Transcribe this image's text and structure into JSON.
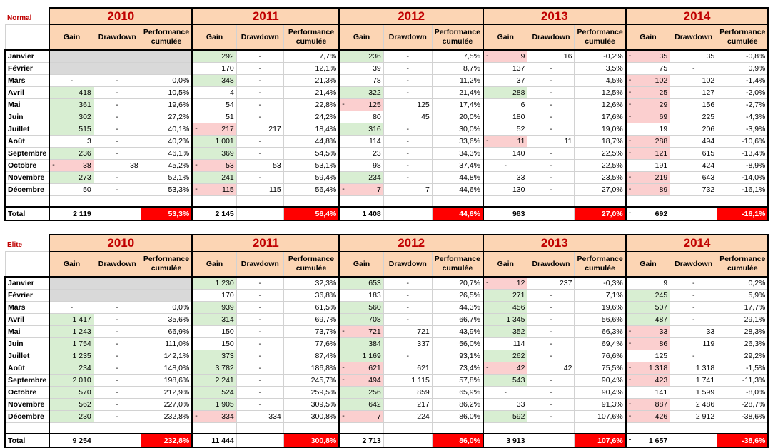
{
  "columns": {
    "gain": "Gain",
    "drawdown": "Drawdown",
    "perf": "Performance cumulée",
    "perf_wrapped": "Performance cumulée"
  },
  "total_label": "Total",
  "months": [
    "Janvier",
    "Février",
    "Mars",
    "Avril",
    "Mai",
    "Juin",
    "Juillet",
    "Août",
    "Septembre",
    "Octobre",
    "Novembre",
    "Décembre"
  ],
  "colors": {
    "header_bg": "#fcd5b4",
    "year_text": "#c00000",
    "gain_bg": "#d8eed2",
    "loss_bg": "#fbcfcf",
    "empty_bg": "#d9d9d9",
    "total_perf_bg": "#ff0000"
  },
  "sections": [
    {
      "label": "Normal",
      "years": [
        {
          "year": "2010",
          "cells": [
            [
              "",
              "",
              "",
              ""
            ],
            [
              "",
              "",
              "",
              ""
            ],
            [
              "-",
              "-",
              "0,0%",
              ""
            ],
            [
              "418",
              "-",
              "10,5%",
              "g"
            ],
            [
              "361",
              "-",
              "19,6%",
              "g"
            ],
            [
              "302",
              "-",
              "27,2%",
              "g"
            ],
            [
              "515",
              "-",
              "40,1%",
              "g"
            ],
            [
              "3",
              "-",
              "40,2%",
              ""
            ],
            [
              "236",
              "-",
              "46,1%",
              "g"
            ],
            [
              "38",
              "38",
              "45,2%",
              "n"
            ],
            [
              "273",
              "-",
              "52,1%",
              "g"
            ],
            [
              "50",
              "-",
              "53,3%",
              ""
            ]
          ],
          "total": {
            "gain": "2 119",
            "perf": "53,3%"
          }
        },
        {
          "year": "2011",
          "cells": [
            [
              "292",
              "-",
              "7,7%",
              "g"
            ],
            [
              "170",
              "-",
              "12,1%",
              ""
            ],
            [
              "348",
              "-",
              "21,3%",
              "g"
            ],
            [
              "4",
              "-",
              "21,4%",
              ""
            ],
            [
              "54",
              "-",
              "22,8%",
              ""
            ],
            [
              "51",
              "-",
              "24,2%",
              ""
            ],
            [
              "217",
              "217",
              "18,4%",
              "n"
            ],
            [
              "1 001",
              "-",
              "44,8%",
              "g"
            ],
            [
              "369",
              "-",
              "54,5%",
              "g"
            ],
            [
              "53",
              "53",
              "53,1%",
              "n"
            ],
            [
              "241",
              "-",
              "59,4%",
              "g"
            ],
            [
              "115",
              "115",
              "56,4%",
              "n"
            ]
          ],
          "total": {
            "gain": "2 145",
            "perf": "56,4%"
          }
        },
        {
          "year": "2012",
          "cells": [
            [
              "236",
              "-",
              "7,5%",
              "g"
            ],
            [
              "39",
              "-",
              "8,7%",
              ""
            ],
            [
              "78",
              "-",
              "11,2%",
              ""
            ],
            [
              "322",
              "-",
              "21,4%",
              "g"
            ],
            [
              "125",
              "125",
              "17,4%",
              "n"
            ],
            [
              "80",
              "45",
              "20,0%",
              ""
            ],
            [
              "316",
              "-",
              "30,0%",
              "g"
            ],
            [
              "114",
              "-",
              "33,6%",
              ""
            ],
            [
              "23",
              "-",
              "34,3%",
              ""
            ],
            [
              "98",
              "-",
              "37,4%",
              ""
            ],
            [
              "234",
              "-",
              "44,8%",
              "g"
            ],
            [
              "7",
              "7",
              "44,6%",
              "n"
            ]
          ],
          "total": {
            "gain": "1 408",
            "perf": "44,6%"
          }
        },
        {
          "year": "2013",
          "cells": [
            [
              "9",
              "16",
              "-0,2%",
              "n"
            ],
            [
              "137",
              "-",
              "3,5%",
              ""
            ],
            [
              "37",
              "-",
              "4,5%",
              ""
            ],
            [
              "288",
              "-",
              "12,5%",
              "g"
            ],
            [
              "6",
              "-",
              "12,6%",
              ""
            ],
            [
              "180",
              "-",
              "17,6%",
              ""
            ],
            [
              "52",
              "-",
              "19,0%",
              ""
            ],
            [
              "11",
              "11",
              "18,7%",
              "n"
            ],
            [
              "140",
              "-",
              "22,5%",
              ""
            ],
            [
              "-",
              "-",
              "22,5%",
              ""
            ],
            [
              "33",
              "-",
              "23,5%",
              ""
            ],
            [
              "130",
              "-",
              "27,0%",
              ""
            ]
          ],
          "total": {
            "gain": "983",
            "perf": "27,0%"
          }
        },
        {
          "year": "2014",
          "cells": [
            [
              "35",
              "35",
              "-0,8%",
              "n"
            ],
            [
              "75",
              "-",
              "0,9%",
              ""
            ],
            [
              "102",
              "102",
              "-1,4%",
              "n"
            ],
            [
              "25",
              "127",
              "-2,0%",
              "n"
            ],
            [
              "29",
              "156",
              "-2,7%",
              "n"
            ],
            [
              "69",
              "225",
              "-4,3%",
              "n"
            ],
            [
              "19",
              "206",
              "-3,9%",
              ""
            ],
            [
              "288",
              "494",
              "-10,6%",
              "n"
            ],
            [
              "121",
              "615",
              "-13,4%",
              "n"
            ],
            [
              "191",
              "424",
              "-8,9%",
              ""
            ],
            [
              "219",
              "643",
              "-14,0%",
              "n"
            ],
            [
              "89",
              "732",
              "-16,1%",
              "n"
            ]
          ],
          "total": {
            "gain": "692",
            "perf": "-16,1%",
            "neg": true
          }
        }
      ]
    },
    {
      "label": "Elite",
      "years": [
        {
          "year": "2010",
          "cells": [
            [
              "",
              "",
              "",
              ""
            ],
            [
              "",
              "",
              "",
              ""
            ],
            [
              "-",
              "-",
              "0,0%",
              ""
            ],
            [
              "1 417",
              "-",
              "35,6%",
              "g"
            ],
            [
              "1 243",
              "-",
              "66,9%",
              "g"
            ],
            [
              "1 754",
              "-",
              "111,0%",
              "g"
            ],
            [
              "1 235",
              "-",
              "142,1%",
              "g"
            ],
            [
              "234",
              "-",
              "148,0%",
              "g"
            ],
            [
              "2 010",
              "-",
              "198,6%",
              "g"
            ],
            [
              "570",
              "-",
              "212,9%",
              "g"
            ],
            [
              "562",
              "-",
              "227,0%",
              "g"
            ],
            [
              "230",
              "-",
              "232,8%",
              "g"
            ]
          ],
          "total": {
            "gain": "9 254",
            "perf": "232,8%"
          }
        },
        {
          "year": "2011",
          "cells": [
            [
              "1 230",
              "-",
              "32,3%",
              "g"
            ],
            [
              "170",
              "-",
              "36,8%",
              ""
            ],
            [
              "939",
              "-",
              "61,5%",
              "g"
            ],
            [
              "314",
              "-",
              "69,7%",
              "g"
            ],
            [
              "150",
              "-",
              "73,7%",
              ""
            ],
            [
              "150",
              "-",
              "77,6%",
              ""
            ],
            [
              "373",
              "-",
              "87,4%",
              "g"
            ],
            [
              "3 782",
              "-",
              "186,8%",
              "g"
            ],
            [
              "2 241",
              "-",
              "245,7%",
              "g"
            ],
            [
              "524",
              "-",
              "259,5%",
              "g"
            ],
            [
              "1 905",
              "-",
              "309,5%",
              "g"
            ],
            [
              "334",
              "334",
              "300,8%",
              "n"
            ]
          ],
          "total": {
            "gain": "11 444",
            "perf": "300,8%"
          }
        },
        {
          "year": "2012",
          "cells": [
            [
              "653",
              "-",
              "20,7%",
              "g"
            ],
            [
              "183",
              "-",
              "26,5%",
              ""
            ],
            [
              "560",
              "-",
              "44,3%",
              "g"
            ],
            [
              "708",
              "-",
              "66,7%",
              "g"
            ],
            [
              "721",
              "721",
              "43,9%",
              "n"
            ],
            [
              "384",
              "337",
              "56,0%",
              "g"
            ],
            [
              "1 169",
              "-",
              "93,1%",
              "g"
            ],
            [
              "621",
              "621",
              "73,4%",
              "n"
            ],
            [
              "494",
              "1 115",
              "57,8%",
              "n"
            ],
            [
              "256",
              "859",
              "65,9%",
              "g"
            ],
            [
              "642",
              "217",
              "86,2%",
              "g"
            ],
            [
              "7",
              "224",
              "86,0%",
              "n"
            ]
          ],
          "total": {
            "gain": "2 713",
            "perf": "86,0%"
          }
        },
        {
          "year": "2013",
          "cells": [
            [
              "12",
              "237",
              "-0,3%",
              "n"
            ],
            [
              "271",
              "-",
              "7,1%",
              "g"
            ],
            [
              "456",
              "-",
              "19,6%",
              "g"
            ],
            [
              "1 345",
              "-",
              "56,6%",
              "g"
            ],
            [
              "352",
              "-",
              "66,3%",
              "g"
            ],
            [
              "114",
              "-",
              "69,4%",
              ""
            ],
            [
              "262",
              "-",
              "76,6%",
              "g"
            ],
            [
              "42",
              "42",
              "75,5%",
              "n"
            ],
            [
              "543",
              "-",
              "90,4%",
              "g"
            ],
            [
              "-",
              "-",
              "90,4%",
              ""
            ],
            [
              "33",
              "-",
              "91,3%",
              ""
            ],
            [
              "592",
              "-",
              "107,6%",
              "g"
            ]
          ],
          "total": {
            "gain": "3 913",
            "perf": "107,6%"
          }
        },
        {
          "year": "2014",
          "cells": [
            [
              "9",
              "-",
              "0,2%",
              ""
            ],
            [
              "245",
              "-",
              "5,9%",
              "g"
            ],
            [
              "507",
              "-",
              "17,7%",
              "g"
            ],
            [
              "487",
              "-",
              "29,1%",
              "g"
            ],
            [
              "33",
              "33",
              "28,3%",
              "n"
            ],
            [
              "86",
              "119",
              "26,3%",
              "n"
            ],
            [
              "125",
              "-",
              "29,2%",
              ""
            ],
            [
              "1 318",
              "1 318",
              "-1,5%",
              "n"
            ],
            [
              "423",
              "1 741",
              "-11,3%",
              "n"
            ],
            [
              "141",
              "1 599",
              "-8,0%",
              ""
            ],
            [
              "887",
              "2 486",
              "-28,7%",
              "n"
            ],
            [
              "426",
              "2 912",
              "-38,6%",
              "n"
            ]
          ],
          "total": {
            "gain": "1 657",
            "perf": "-38,6%",
            "neg": true
          }
        }
      ]
    }
  ]
}
